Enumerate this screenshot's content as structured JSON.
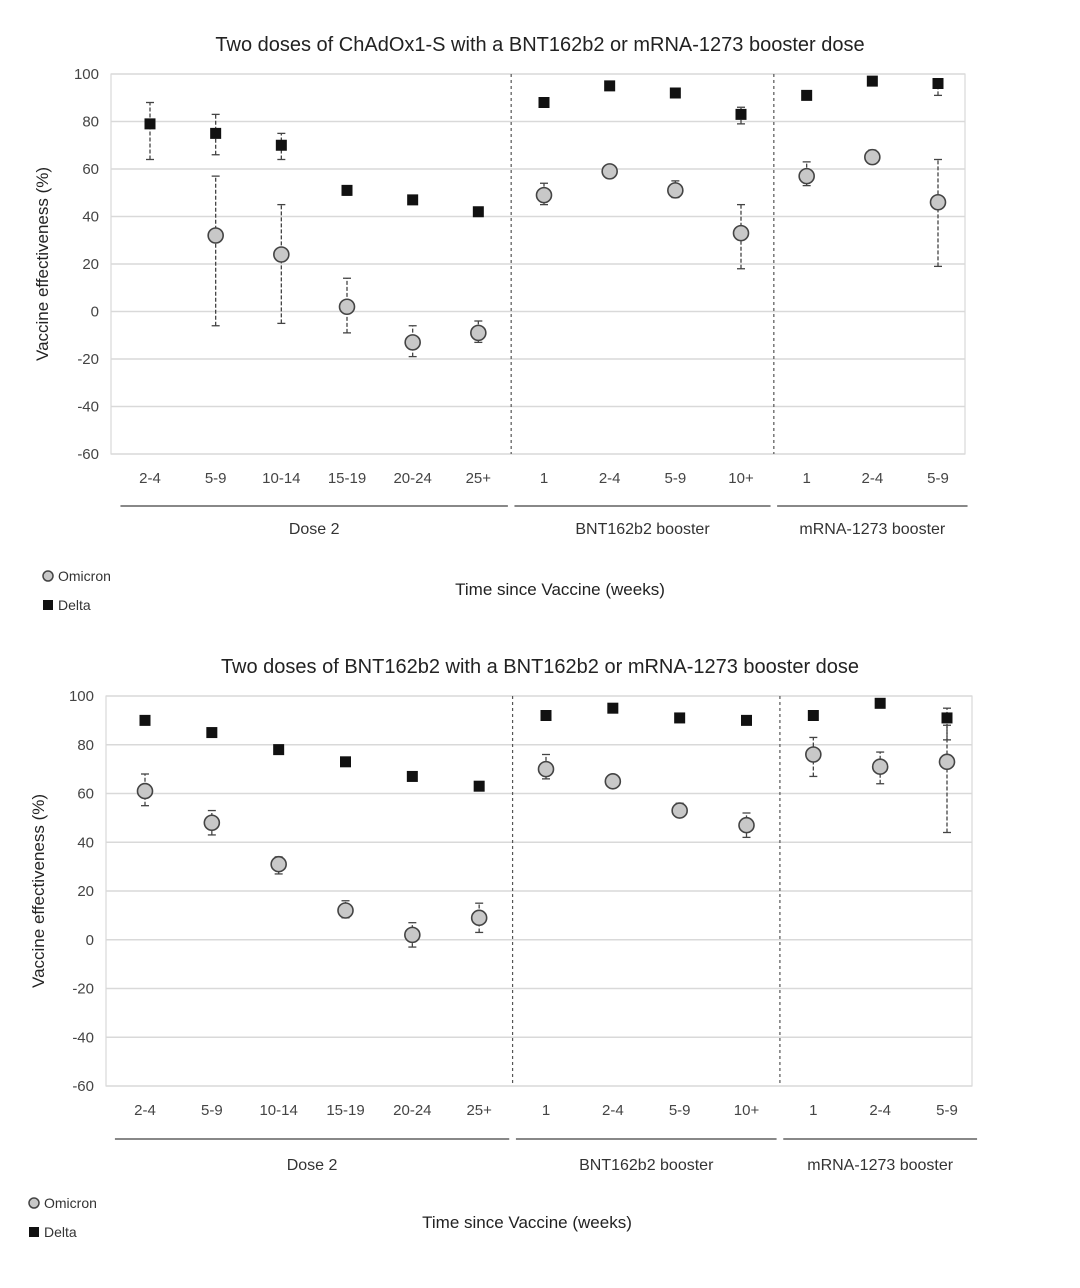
{
  "chart_data": [
    {
      "type": "scatter",
      "title": "Two doses of ChAdOx1-S with a BNT162b2 or mRNA-1273 booster dose",
      "ylabel": "Vaccine effectiveness (%)",
      "xlabel": "Time since Vaccine (weeks)",
      "ylim": [
        -60,
        100
      ],
      "yticks": [
        -60,
        -40,
        -20,
        0,
        20,
        40,
        60,
        80,
        100
      ],
      "grid": true,
      "categories": [
        "2-4",
        "5-9",
        "10-14",
        "15-19",
        "20-24",
        "25+",
        "1",
        "2-4",
        "5-9",
        "10+",
        "1",
        "2-4",
        "5-9"
      ],
      "groups": [
        {
          "label": "Dose 2",
          "start": 0,
          "end": 5
        },
        {
          "label": "BNT162b2 booster",
          "start": 6,
          "end": 9
        },
        {
          "label": "mRNA-1273 booster",
          "start": 10,
          "end": 12
        }
      ],
      "separators_after": [
        5,
        9
      ],
      "legend": {
        "placement": "bottom-left"
      },
      "series": [
        {
          "name": "Omicron",
          "marker": "circle",
          "color": "#c8c8c8",
          "values": [
            null,
            32,
            24,
            2,
            -13,
            -9,
            49,
            59,
            51,
            33,
            57,
            65,
            46
          ],
          "lower": [
            null,
            -6,
            -5,
            -9,
            -19,
            -13,
            45,
            57,
            48,
            18,
            53,
            63,
            19
          ],
          "upper": [
            null,
            57,
            45,
            14,
            -6,
            -4,
            54,
            61,
            55,
            45,
            63,
            68,
            64
          ]
        },
        {
          "name": "Delta",
          "marker": "square",
          "color": "#111111",
          "values": [
            79,
            75,
            70,
            51,
            47,
            42,
            88,
            95,
            92,
            83,
            91,
            97,
            96
          ],
          "lower": [
            64,
            66,
            64,
            49,
            null,
            null,
            null,
            null,
            null,
            79,
            null,
            null,
            91
          ],
          "upper": [
            88,
            83,
            75,
            53,
            null,
            null,
            null,
            null,
            null,
            86,
            null,
            null,
            98
          ]
        }
      ]
    },
    {
      "type": "scatter",
      "title": "Two doses of BNT162b2 with a BNT162b2 or mRNA-1273 booster dose",
      "ylabel": "Vaccine effectiveness (%)",
      "xlabel": "Time since Vaccine (weeks)",
      "ylim": [
        -60,
        100
      ],
      "yticks": [
        -60,
        -40,
        -20,
        0,
        20,
        40,
        60,
        80,
        100
      ],
      "grid": true,
      "categories": [
        "2-4",
        "5-9",
        "10-14",
        "15-19",
        "20-24",
        "25+",
        "1",
        "2-4",
        "5-9",
        "10+",
        "1",
        "2-4",
        "5-9"
      ],
      "groups": [
        {
          "label": "Dose 2",
          "start": 0,
          "end": 5
        },
        {
          "label": "BNT162b2 booster",
          "start": 6,
          "end": 9
        },
        {
          "label": "mRNA-1273 booster",
          "start": 10,
          "end": 12
        }
      ],
      "separators_after": [
        5,
        9
      ],
      "legend": {
        "placement": "bottom-left"
      },
      "series": [
        {
          "name": "Omicron",
          "marker": "circle",
          "color": "#c8c8c8",
          "values": [
            61,
            48,
            31,
            12,
            2,
            9,
            70,
            65,
            53,
            47,
            76,
            71,
            73
          ],
          "lower": [
            55,
            43,
            27,
            9,
            -3,
            3,
            66,
            63,
            51,
            42,
            67,
            64,
            44
          ],
          "upper": [
            68,
            53,
            34,
            16,
            7,
            15,
            76,
            67,
            56,
            52,
            83,
            77,
            88
          ]
        },
        {
          "name": "Delta",
          "marker": "square",
          "color": "#111111",
          "values": [
            90,
            85,
            78,
            73,
            67,
            63,
            92,
            95,
            91,
            90,
            92,
            97,
            91
          ],
          "lower": [
            null,
            null,
            null,
            null,
            null,
            null,
            null,
            null,
            null,
            null,
            null,
            null,
            82
          ],
          "upper": [
            null,
            null,
            null,
            null,
            null,
            null,
            null,
            null,
            null,
            null,
            null,
            null,
            95
          ]
        }
      ]
    }
  ]
}
